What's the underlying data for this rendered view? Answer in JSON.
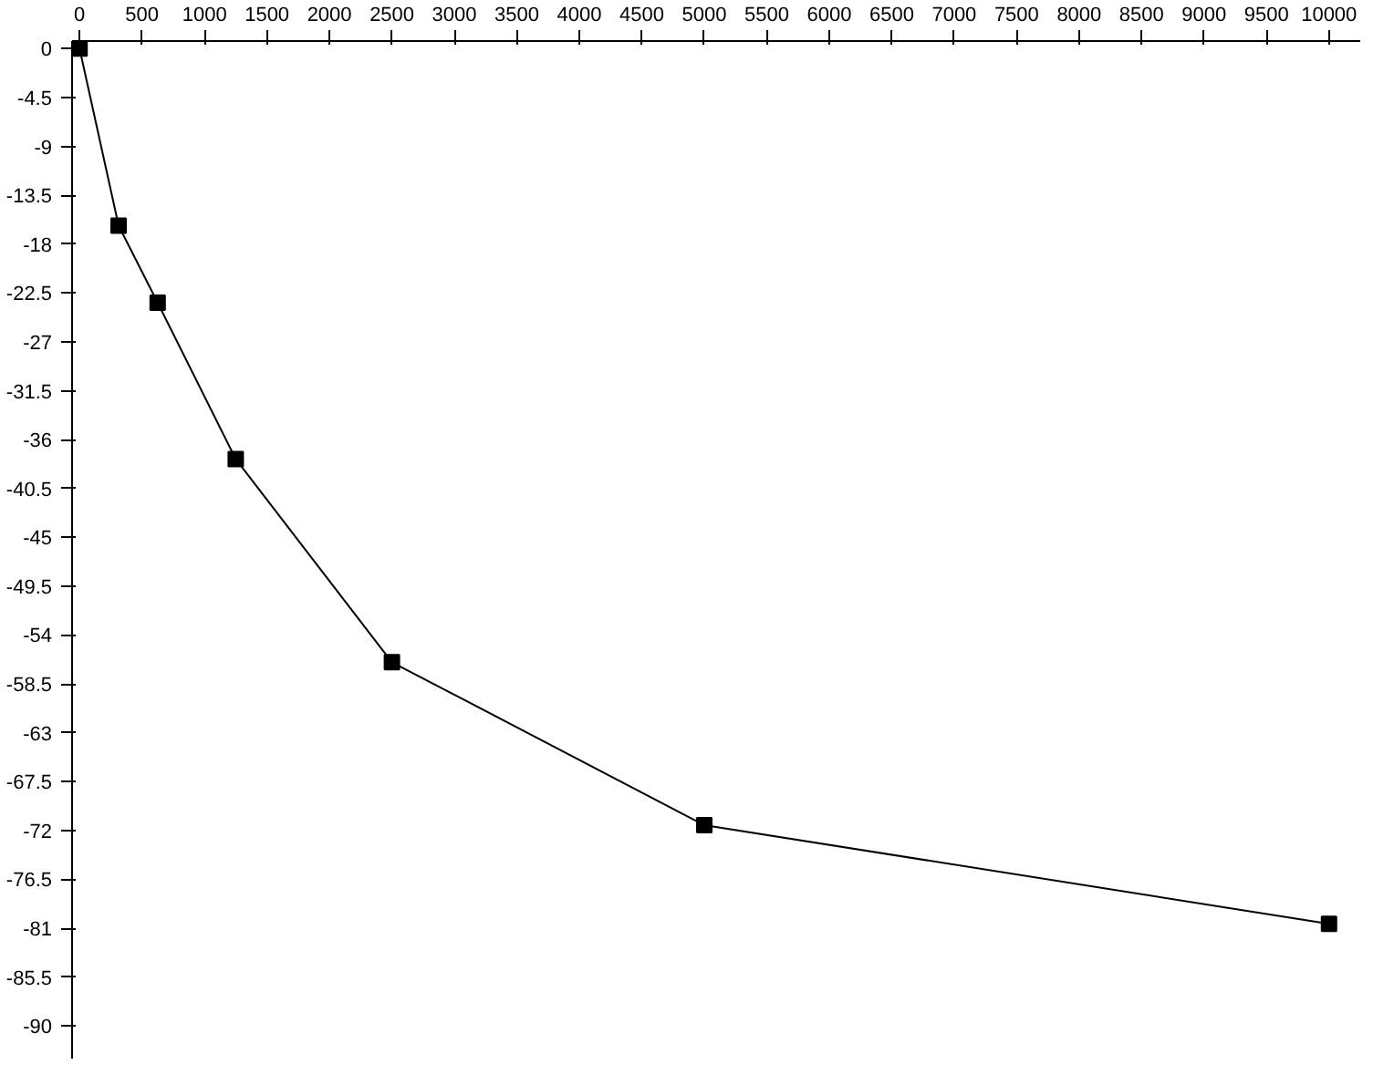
{
  "chart_data": {
    "type": "line",
    "x": [
      0,
      312.5,
      625,
      1250,
      2500,
      5000,
      10000
    ],
    "series": [
      {
        "color": "#000000",
        "values": [
          0,
          -16.3,
          -23.4,
          -37.8,
          -56.5,
          -71.5,
          -80.6
        ]
      }
    ],
    "xlim": [
      -60,
      10250
    ],
    "ylim": [
      -93,
      0.7
    ],
    "xticks": [
      0,
      500,
      1000,
      1500,
      2000,
      2500,
      3000,
      3500,
      4000,
      4500,
      5000,
      5500,
      6000,
      6500,
      7000,
      7500,
      8000,
      8500,
      9000,
      9500,
      10000
    ],
    "yticks": [
      0,
      -4.5,
      -9,
      -13.5,
      -18,
      -22.5,
      -27,
      -31.5,
      -36,
      -40.5,
      -45,
      -49.5,
      -54,
      -58.5,
      -63,
      -67.5,
      -72,
      -76.5,
      -81,
      -85.5,
      -90
    ],
    "marker": "square",
    "line_style": "solid",
    "grid": false
  }
}
